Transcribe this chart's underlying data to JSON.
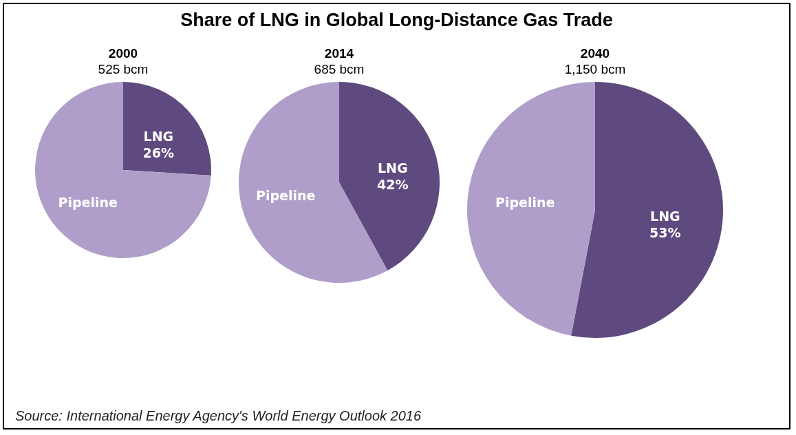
{
  "chart_data": [
    {
      "type": "pie",
      "title": "2000",
      "subtitle": "525 bcm",
      "categories": [
        "LNG",
        "Pipeline"
      ],
      "values": [
        26,
        74
      ],
      "value_labels": [
        "26%",
        null
      ],
      "colors": [
        "#5e4a7e",
        "#ae9ec9"
      ],
      "annotations": [
        "Share of LNG in Global Long-Distance Gas Trade"
      ]
    },
    {
      "type": "pie",
      "title": "2014",
      "subtitle": "685 bcm",
      "categories": [
        "LNG",
        "Pipeline"
      ],
      "values": [
        42,
        58
      ],
      "value_labels": [
        "42%",
        null
      ],
      "colors": [
        "#5e4a7e",
        "#ae9ec9"
      ]
    },
    {
      "type": "pie",
      "title": "2040",
      "subtitle": "1,150 bcm",
      "categories": [
        "LNG",
        "Pipeline"
      ],
      "values": [
        53,
        47
      ],
      "value_labels": [
        "53%",
        null
      ],
      "colors": [
        "#5e4a7e",
        "#ae9ec9"
      ],
      "annotations": [
        "Source: International Energy Agency's World Energy Outlook 2016"
      ]
    }
  ]
}
